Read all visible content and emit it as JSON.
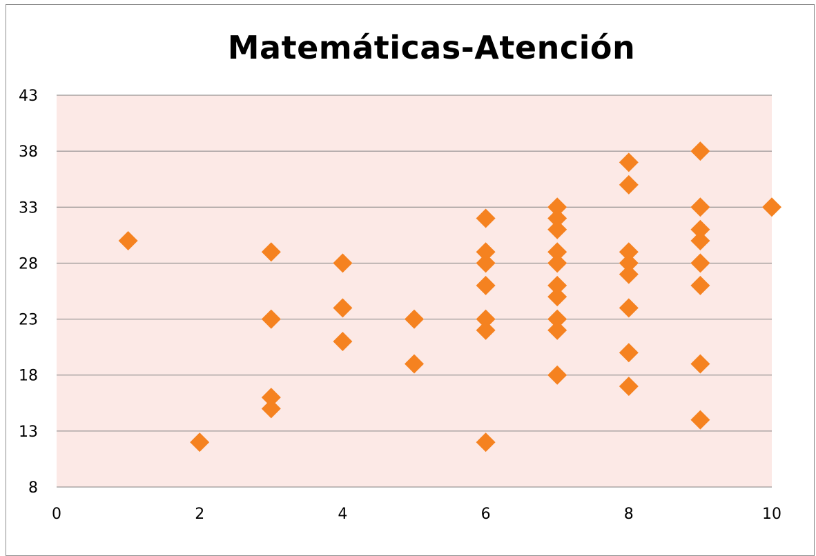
{
  "chart_data": {
    "type": "scatter",
    "title": "Matemáticas-Atención",
    "xlabel": "",
    "ylabel": "",
    "xlim": [
      0,
      10
    ],
    "ylim": [
      8,
      43
    ],
    "x_ticks": [
      "0",
      "2",
      "4",
      "6",
      "8",
      "10"
    ],
    "y_ticks": [
      "8",
      "13",
      "18",
      "23",
      "28",
      "33",
      "38",
      "43"
    ],
    "grid": "horizontal",
    "legend": "none",
    "colors": {
      "plot_background": "#fce9e6",
      "marker": "#f58220",
      "gridline": "#7f7f7f"
    },
    "marker_shape": "diamond",
    "points": [
      [
        1,
        30
      ],
      [
        2,
        12
      ],
      [
        3,
        29
      ],
      [
        3,
        23
      ],
      [
        3,
        16
      ],
      [
        3,
        15
      ],
      [
        4,
        28
      ],
      [
        4,
        24
      ],
      [
        4,
        21
      ],
      [
        5,
        23
      ],
      [
        5,
        19
      ],
      [
        6,
        32
      ],
      [
        6,
        29
      ],
      [
        6,
        28
      ],
      [
        6,
        26
      ],
      [
        6,
        23
      ],
      [
        6,
        22
      ],
      [
        6,
        12
      ],
      [
        7,
        33
      ],
      [
        7,
        32
      ],
      [
        7,
        31
      ],
      [
        7,
        29
      ],
      [
        7,
        28
      ],
      [
        7,
        26
      ],
      [
        7,
        25
      ],
      [
        7,
        23
      ],
      [
        7,
        22
      ],
      [
        7,
        18
      ],
      [
        8,
        37
      ],
      [
        8,
        35
      ],
      [
        8,
        29
      ],
      [
        8,
        28
      ],
      [
        8,
        27
      ],
      [
        8,
        24
      ],
      [
        8,
        20
      ],
      [
        8,
        17
      ],
      [
        9,
        38
      ],
      [
        9,
        33
      ],
      [
        9,
        31
      ],
      [
        9,
        30
      ],
      [
        9,
        28
      ],
      [
        9,
        26
      ],
      [
        9,
        19
      ],
      [
        9,
        14
      ],
      [
        10,
        33
      ]
    ]
  }
}
